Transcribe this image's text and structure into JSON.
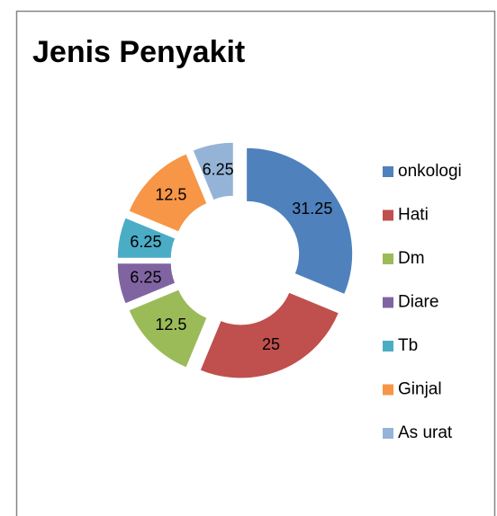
{
  "chart_data": {
    "type": "doughnut",
    "title": "Jenis Penyakit",
    "categories": [
      "onkologi",
      "Hati",
      "Dm",
      "Diare",
      "Tb",
      "Ginjal",
      "As urat"
    ],
    "values": [
      31.25,
      25,
      12.5,
      6.25,
      6.25,
      12.5,
      6.25
    ],
    "colors": [
      "#4f81bd",
      "#c0504d",
      "#9bbb59",
      "#8064a2",
      "#4bacc6",
      "#f79646",
      "#95b3d7"
    ],
    "legend": "right"
  }
}
